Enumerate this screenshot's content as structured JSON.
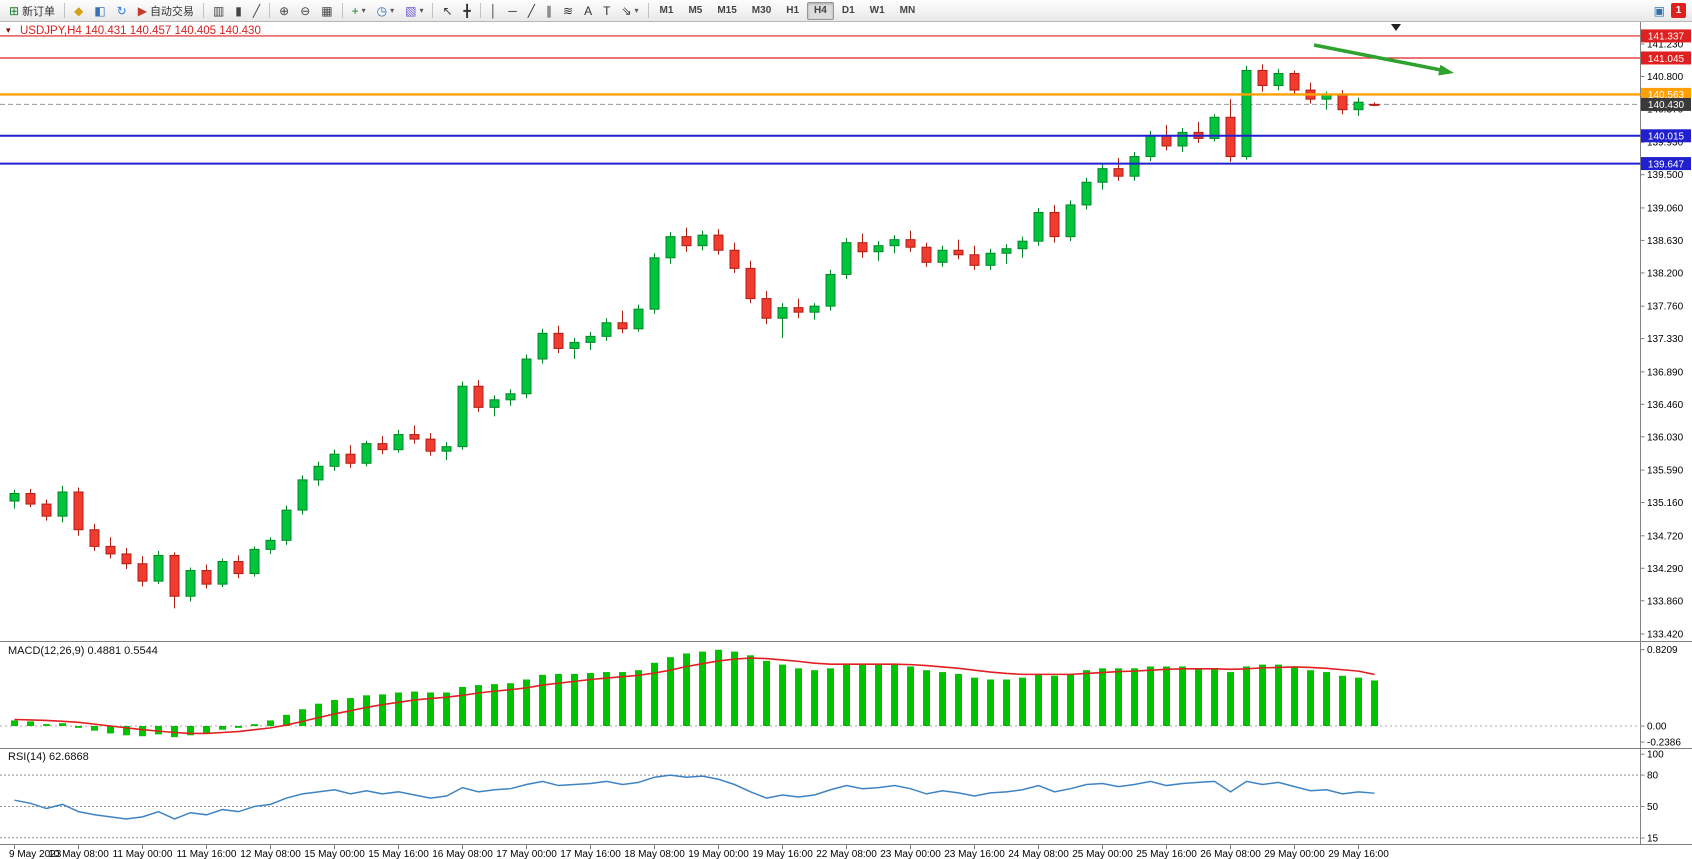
{
  "glyphs": {
    "one_click": "▾",
    "dropdown": "▾"
  },
  "toolbar": {
    "buttons": [
      {
        "type": "button",
        "name": "new-order-button",
        "icon": "new-order-icon",
        "glyph": "⊞",
        "glyph_color": "#1b7e2a",
        "label": "新订单"
      },
      {
        "type": "sep"
      },
      {
        "type": "button",
        "name": "mql5-community-button",
        "icon": "mql5-hat-icon",
        "glyph": "◆",
        "glyph_color": "#d4a017"
      },
      {
        "type": "button",
        "name": "market-watch-button",
        "icon": "market-watch-icon",
        "glyph": "◧",
        "glyph_color": "#3b6fb5"
      },
      {
        "type": "button",
        "name": "refresh-button",
        "icon": "refresh-icon",
        "glyph": "↻",
        "glyph_color": "#2f7ed8"
      },
      {
        "type": "button",
        "name": "autotrading-button",
        "icon": "autotrading-icon",
        "glyph": "▶",
        "glyph_color": "#c43c2e",
        "label": "自动交易"
      },
      {
        "type": "sep"
      },
      {
        "type": "button",
        "name": "chart-bars-button",
        "icon": "bar-chart-icon",
        "glyph": "▥",
        "glyph_color": "#444444"
      },
      {
        "type": "button",
        "name": "chart-candles-button",
        "icon": "candlestick-chart-icon",
        "glyph": "▮",
        "glyph_color": "#444444"
      },
      {
        "type": "button",
        "name": "chart-line-button",
        "icon": "line-chart-icon",
        "glyph": "╱",
        "glyph_color": "#444444"
      },
      {
        "type": "sep"
      },
      {
        "type": "button",
        "name": "zoom-in-button",
        "icon": "zoom-in-icon",
        "glyph": "⊕",
        "glyph_color": "#444444"
      },
      {
        "type": "button",
        "name": "zoom-out-button",
        "icon": "zoom-out-icon",
        "glyph": "⊖",
        "glyph_color": "#444444"
      },
      {
        "type": "button",
        "name": "tile-windows-button",
        "icon": "tile-windows-icon",
        "glyph": "▦",
        "glyph_color": "#444444"
      },
      {
        "type": "sep"
      },
      {
        "type": "button",
        "name": "indicators-button",
        "icon": "indicators-plus-icon",
        "glyph": "+",
        "glyph_color": "#1b7e2a",
        "dropdown": true
      },
      {
        "type": "button",
        "name": "periods-button",
        "icon": "clock-icon",
        "glyph": "◷",
        "glyph_color": "#2f6fb0",
        "dropdown": true
      },
      {
        "type": "button",
        "name": "templates-button",
        "icon": "template-icon",
        "glyph": "▧",
        "glyph_color": "#6a5acd",
        "dropdown": true
      },
      {
        "type": "sep"
      },
      {
        "type": "button",
        "name": "cursor-button",
        "icon": "cursor-icon",
        "glyph": "↖",
        "glyph_color": "#333333"
      },
      {
        "type": "button",
        "name": "crosshair-button",
        "icon": "crosshair-icon",
        "glyph": "╋",
        "glyph_color": "#333333"
      },
      {
        "type": "sep"
      },
      {
        "type": "button",
        "name": "vertical-line-button",
        "icon": "vertical-line-icon",
        "glyph": "│",
        "glyph_color": "#333333"
      },
      {
        "type": "button",
        "name": "horizontal-line-button",
        "icon": "horizontal-line-icon",
        "glyph": "─",
        "glyph_color": "#333333"
      },
      {
        "type": "button",
        "name": "trendline-button",
        "icon": "trendline-icon",
        "glyph": "╱",
        "glyph_color": "#333333"
      },
      {
        "type": "button",
        "name": "channel-button",
        "icon": "equidistant-channel-icon",
        "glyph": "∥",
        "glyph_color": "#333333"
      },
      {
        "type": "button",
        "name": "fibonacci-button",
        "icon": "fibonacci-icon",
        "glyph": "≋",
        "glyph_color": "#333333"
      },
      {
        "type": "button",
        "name": "text-button",
        "icon": "text-icon",
        "glyph": "A",
        "glyph_color": "#333333"
      },
      {
        "type": "button",
        "name": "label-button",
        "icon": "text-label-icon",
        "glyph": "T",
        "glyph_color": "#333333"
      },
      {
        "type": "button",
        "name": "arrows-button",
        "icon": "arrow-objects-icon",
        "glyph": "⇘",
        "glyph_color": "#333333",
        "dropdown": true
      },
      {
        "type": "sep"
      }
    ],
    "timeframes": [
      "M1",
      "M5",
      "M15",
      "M30",
      "H1",
      "H4",
      "D1",
      "W1",
      "MN"
    ],
    "active_timeframe": "H4",
    "right_buttons": [
      {
        "name": "community-chat-button",
        "icon": "chat-icon",
        "glyph": "▣",
        "glyph_color": "#2f6fb0"
      }
    ],
    "notification_count": "1"
  },
  "chart": {
    "title": "USDJPY,H4 140.431 140.457 140.405 140.430",
    "symbol": "USDJPY",
    "period": "H4",
    "open": "140.431",
    "high": "140.457",
    "low": "140.405",
    "close": "140.430"
  },
  "colors": {
    "up_fill": "#00c43c",
    "up_stroke": "#00882a",
    "down_fill": "#f03b2e",
    "down_stroke": "#b01e14",
    "macd_hist": "#00c400",
    "macd_signal": "#e02020",
    "rsi_line": "#3e84c4",
    "red_line": "#e02020",
    "orange_line": "#ffa000",
    "blue_line": "#2020d0",
    "current_tag": "#3a3a3c",
    "arrow": "#2fa12f",
    "grid": "#808080"
  },
  "chart_data": {
    "type": "candlestick",
    "symbol": "USDJPY",
    "timeframe": "H4",
    "price_axis_labels": [
      "141.230",
      "140.800",
      "140.370",
      "139.930",
      "139.500",
      "139.060",
      "138.630",
      "138.200",
      "137.760",
      "137.330",
      "136.890",
      "136.460",
      "136.030",
      "135.590",
      "135.160",
      "134.720",
      "134.290",
      "133.860",
      "133.420"
    ],
    "hlines": [
      {
        "price": 141.337,
        "label": "141.337",
        "color_key": "red_line",
        "width": 1.2
      },
      {
        "price": 141.045,
        "label": "141.045",
        "color_key": "red_line",
        "width": 1.2
      },
      {
        "price": 140.563,
        "label": "140.563",
        "color_key": "orange_line",
        "width": 2.4
      },
      {
        "price": 140.015,
        "label": "140.015",
        "color_key": "blue_line",
        "width": 2
      },
      {
        "price": 139.647,
        "label": "139.647",
        "color_key": "blue_line",
        "width": 2
      }
    ],
    "current_price": {
      "price": 140.43,
      "label": "140.430"
    },
    "time_labels": [
      {
        "t": "9 May 2023",
        "i": 0
      },
      {
        "t": "10 May 08:00",
        "i": 4
      },
      {
        "t": "11 May 00:00",
        "i": 8
      },
      {
        "t": "11 May 16:00",
        "i": 12
      },
      {
        "t": "12 May 08:00",
        "i": 16
      },
      {
        "t": "15 May 00:00",
        "i": 20
      },
      {
        "t": "15 May 16:00",
        "i": 24
      },
      {
        "t": "16 May 08:00",
        "i": 28
      },
      {
        "t": "17 May 00:00",
        "i": 32
      },
      {
        "t": "17 May 16:00",
        "i": 36
      },
      {
        "t": "18 May 08:00",
        "i": 40
      },
      {
        "t": "19 May 00:00",
        "i": 44
      },
      {
        "t": "19 May 16:00",
        "i": 48
      },
      {
        "t": "22 May 08:00",
        "i": 52
      },
      {
        "t": "23 May 00:00",
        "i": 56
      },
      {
        "t": "23 May 16:00",
        "i": 60
      },
      {
        "t": "24 May 08:00",
        "i": 64
      },
      {
        "t": "25 May 00:00",
        "i": 68
      },
      {
        "t": "25 May 16:00",
        "i": 72
      },
      {
        "t": "26 May 08:00",
        "i": 76
      },
      {
        "t": "29 May 00:00",
        "i": 80
      },
      {
        "t": "29 May 16:00",
        "i": 84
      }
    ],
    "candles": [
      [
        135.18,
        135.33,
        135.08,
        135.28
      ],
      [
        135.28,
        135.34,
        135.1,
        135.14
      ],
      [
        135.14,
        135.2,
        134.92,
        134.98
      ],
      [
        134.98,
        135.38,
        134.9,
        135.3
      ],
      [
        135.3,
        135.36,
        134.72,
        134.8
      ],
      [
        134.8,
        134.88,
        134.52,
        134.58
      ],
      [
        134.58,
        134.7,
        134.42,
        134.48
      ],
      [
        134.48,
        134.56,
        134.28,
        134.35
      ],
      [
        134.35,
        134.45,
        134.05,
        134.12
      ],
      [
        134.12,
        134.52,
        134.08,
        134.46
      ],
      [
        134.46,
        134.5,
        133.76,
        133.92
      ],
      [
        133.92,
        134.3,
        133.85,
        134.26
      ],
      [
        134.26,
        134.34,
        134.02,
        134.08
      ],
      [
        134.08,
        134.42,
        134.04,
        134.38
      ],
      [
        134.38,
        134.46,
        134.16,
        134.22
      ],
      [
        134.22,
        134.58,
        134.18,
        134.54
      ],
      [
        134.54,
        134.7,
        134.48,
        134.66
      ],
      [
        134.66,
        135.12,
        134.6,
        135.06
      ],
      [
        135.06,
        135.52,
        135.0,
        135.46
      ],
      [
        135.46,
        135.7,
        135.38,
        135.64
      ],
      [
        135.64,
        135.86,
        135.58,
        135.8
      ],
      [
        135.8,
        135.92,
        135.62,
        135.68
      ],
      [
        135.68,
        135.98,
        135.64,
        135.94
      ],
      [
        135.94,
        136.04,
        135.8,
        135.86
      ],
      [
        135.86,
        136.12,
        135.82,
        136.06
      ],
      [
        136.06,
        136.18,
        135.94,
        136.0
      ],
      [
        136.0,
        136.08,
        135.78,
        135.84
      ],
      [
        135.84,
        135.96,
        135.72,
        135.9
      ],
      [
        135.9,
        136.76,
        135.86,
        136.7
      ],
      [
        136.7,
        136.78,
        136.36,
        136.42
      ],
      [
        136.42,
        136.58,
        136.3,
        136.52
      ],
      [
        136.52,
        136.66,
        136.44,
        136.6
      ],
      [
        136.6,
        137.12,
        136.54,
        137.06
      ],
      [
        137.06,
        137.46,
        137.0,
        137.4
      ],
      [
        137.4,
        137.5,
        137.14,
        137.2
      ],
      [
        137.2,
        137.34,
        137.06,
        137.28
      ],
      [
        137.28,
        137.42,
        137.18,
        137.36
      ],
      [
        137.36,
        137.6,
        137.3,
        137.54
      ],
      [
        137.54,
        137.7,
        137.4,
        137.46
      ],
      [
        137.46,
        137.78,
        137.42,
        137.72
      ],
      [
        137.72,
        138.46,
        137.66,
        138.4
      ],
      [
        138.4,
        138.74,
        138.32,
        138.68
      ],
      [
        138.68,
        138.8,
        138.48,
        138.56
      ],
      [
        138.56,
        138.76,
        138.5,
        138.7
      ],
      [
        138.7,
        138.78,
        138.44,
        138.5
      ],
      [
        138.5,
        138.6,
        138.2,
        138.26
      ],
      [
        138.26,
        138.36,
        137.8,
        137.86
      ],
      [
        137.86,
        137.96,
        137.52,
        137.6
      ],
      [
        137.6,
        137.8,
        137.34,
        137.74
      ],
      [
        137.74,
        137.86,
        137.6,
        137.68
      ],
      [
        137.68,
        137.8,
        137.58,
        137.76
      ],
      [
        137.76,
        138.24,
        137.7,
        138.18
      ],
      [
        138.18,
        138.66,
        138.12,
        138.6
      ],
      [
        138.6,
        138.72,
        138.4,
        138.48
      ],
      [
        138.48,
        138.62,
        138.36,
        138.56
      ],
      [
        138.56,
        138.7,
        138.46,
        138.64
      ],
      [
        138.64,
        138.76,
        138.48,
        138.54
      ],
      [
        138.54,
        138.6,
        138.28,
        138.34
      ],
      [
        138.34,
        138.56,
        138.28,
        138.5
      ],
      [
        138.5,
        138.64,
        138.38,
        138.44
      ],
      [
        138.44,
        138.56,
        138.24,
        138.3
      ],
      [
        138.3,
        138.52,
        138.24,
        138.46
      ],
      [
        138.46,
        138.58,
        138.32,
        138.52
      ],
      [
        138.52,
        138.68,
        138.4,
        138.62
      ],
      [
        138.62,
        139.06,
        138.56,
        139.0
      ],
      [
        139.0,
        139.1,
        138.6,
        138.68
      ],
      [
        138.68,
        139.16,
        138.62,
        139.1
      ],
      [
        139.1,
        139.46,
        139.04,
        139.4
      ],
      [
        139.4,
        139.64,
        139.3,
        139.58
      ],
      [
        139.58,
        139.72,
        139.42,
        139.48
      ],
      [
        139.48,
        139.8,
        139.42,
        139.74
      ],
      [
        139.74,
        140.08,
        139.68,
        140.02
      ],
      [
        140.02,
        140.16,
        139.82,
        139.88
      ],
      [
        139.88,
        140.12,
        139.8,
        140.06
      ],
      [
        140.06,
        140.2,
        139.92,
        139.98
      ],
      [
        139.98,
        140.3,
        139.94,
        140.26
      ],
      [
        140.26,
        140.5,
        139.67,
        139.74
      ],
      [
        139.74,
        140.94,
        139.7,
        140.88
      ],
      [
        140.88,
        140.96,
        140.6,
        140.68
      ],
      [
        140.68,
        140.9,
        140.62,
        140.84
      ],
      [
        140.84,
        140.88,
        140.56,
        140.62
      ],
      [
        140.62,
        140.72,
        140.44,
        140.5
      ],
      [
        140.5,
        140.6,
        140.36,
        140.56
      ],
      [
        140.56,
        140.62,
        140.3,
        140.36
      ],
      [
        140.36,
        140.52,
        140.28,
        140.46
      ],
      [
        140.431,
        140.457,
        140.405,
        140.43
      ]
    ],
    "indicators": {
      "macd": {
        "name": "MACD(12,26,9)",
        "display": "MACD(12,26,9) 0.4881 0.5544",
        "value_main": "0.4881",
        "value_signal": "0.5544",
        "axis_labels": [
          "0.8209",
          "0.00",
          "-0.2386"
        ],
        "axis_max": 0.8209,
        "axis_min": -0.2386,
        "histogram": [
          0.06,
          0.05,
          0.02,
          0.03,
          -0.02,
          -0.05,
          -0.08,
          -0.1,
          -0.11,
          -0.09,
          -0.12,
          -0.1,
          -0.08,
          -0.04,
          -0.02,
          0.02,
          0.06,
          0.12,
          0.18,
          0.24,
          0.28,
          0.3,
          0.33,
          0.34,
          0.36,
          0.37,
          0.36,
          0.36,
          0.42,
          0.44,
          0.45,
          0.46,
          0.5,
          0.55,
          0.56,
          0.56,
          0.57,
          0.58,
          0.58,
          0.6,
          0.68,
          0.74,
          0.78,
          0.8,
          0.82,
          0.8,
          0.76,
          0.7,
          0.66,
          0.62,
          0.6,
          0.62,
          0.66,
          0.66,
          0.66,
          0.66,
          0.64,
          0.6,
          0.58,
          0.56,
          0.52,
          0.5,
          0.5,
          0.52,
          0.56,
          0.54,
          0.56,
          0.6,
          0.62,
          0.62,
          0.62,
          0.64,
          0.64,
          0.64,
          0.62,
          0.62,
          0.58,
          0.64,
          0.66,
          0.66,
          0.64,
          0.6,
          0.58,
          0.54,
          0.52,
          0.49
        ],
        "signal": [
          0.07,
          0.065,
          0.06,
          0.05,
          0.04,
          0.02,
          0.0,
          -0.02,
          -0.04,
          -0.055,
          -0.07,
          -0.08,
          -0.08,
          -0.07,
          -0.06,
          -0.04,
          -0.02,
          0.01,
          0.05,
          0.09,
          0.13,
          0.165,
          0.2,
          0.23,
          0.255,
          0.28,
          0.295,
          0.31,
          0.33,
          0.355,
          0.375,
          0.39,
          0.41,
          0.44,
          0.46,
          0.48,
          0.5,
          0.515,
          0.53,
          0.545,
          0.57,
          0.6,
          0.64,
          0.67,
          0.7,
          0.72,
          0.73,
          0.725,
          0.71,
          0.695,
          0.675,
          0.665,
          0.665,
          0.665,
          0.665,
          0.665,
          0.66,
          0.65,
          0.635,
          0.62,
          0.6,
          0.58,
          0.565,
          0.555,
          0.555,
          0.555,
          0.555,
          0.565,
          0.575,
          0.585,
          0.59,
          0.6,
          0.61,
          0.615,
          0.615,
          0.615,
          0.61,
          0.615,
          0.625,
          0.63,
          0.635,
          0.63,
          0.62,
          0.605,
          0.59,
          0.5544
        ]
      },
      "rsi": {
        "name": "RSI(14)",
        "display": "RSI(14) 62.6868",
        "value": "62.6868",
        "axis_labels": [
          "100",
          "80",
          "50",
          "15"
        ],
        "levels": [
          80,
          50,
          20
        ],
        "values": [
          56,
          53,
          48,
          52,
          45,
          42,
          40,
          38,
          40,
          45,
          38,
          44,
          42,
          47,
          45,
          50,
          52,
          58,
          62,
          64,
          66,
          62,
          65,
          62,
          64,
          61,
          58,
          60,
          68,
          64,
          66,
          67,
          71,
          74,
          70,
          71,
          72,
          74,
          71,
          73,
          78,
          80,
          78,
          79,
          76,
          71,
          64,
          58,
          61,
          59,
          61,
          66,
          70,
          67,
          68,
          70,
          67,
          62,
          65,
          63,
          60,
          63,
          64,
          66,
          70,
          64,
          67,
          71,
          72,
          69,
          71,
          74,
          70,
          72,
          73,
          74,
          64,
          74,
          71,
          73,
          69,
          65,
          66,
          62,
          64,
          62.69
        ]
      }
    },
    "annotations": {
      "green_arrow": {
        "direction": "down-right",
        "color_key": "arrow"
      }
    }
  }
}
